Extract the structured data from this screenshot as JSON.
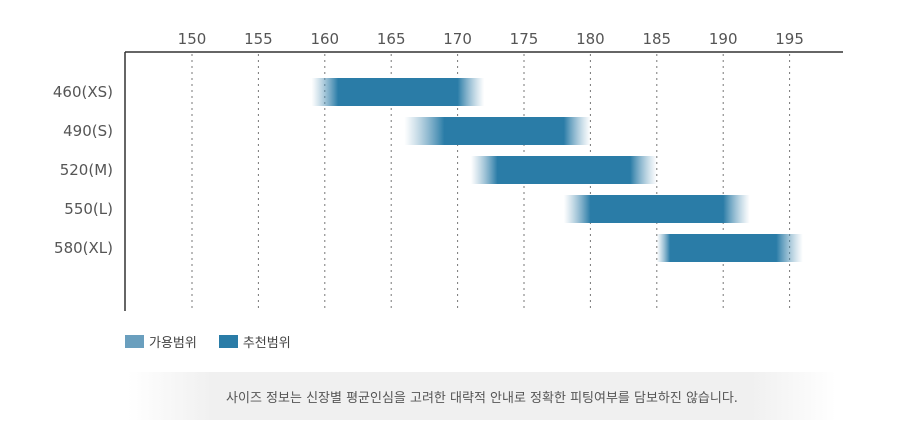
{
  "chart_data": {
    "type": "bar",
    "orientation": "horizontal-range",
    "x_ticks": [
      150,
      155,
      160,
      165,
      170,
      175,
      180,
      185,
      190,
      195
    ],
    "xlim": [
      145,
      199
    ],
    "grid": "vertical dotted",
    "categories": [
      "460(XS)",
      "490(S)",
      "520(M)",
      "550(L)",
      "580(XL)"
    ],
    "series": [
      {
        "name": "가용범위",
        "color": "#6a9fbe",
        "ranges": [
          [
            159,
            172
          ],
          [
            166,
            180
          ],
          [
            171,
            185
          ],
          [
            178,
            192
          ],
          [
            185,
            196
          ]
        ]
      },
      {
        "name": "추천범위",
        "color": "#2a7ca7",
        "ranges": [
          [
            161,
            170
          ],
          [
            169,
            178
          ],
          [
            173,
            183
          ],
          [
            180,
            190
          ],
          [
            186,
            194
          ]
        ]
      }
    ]
  },
  "legend": {
    "available_label": "가용범위",
    "recommended_label": "추천범위"
  },
  "note": "사이즈 정보는 신장별 평균인심을 고려한 대략적 안내로 정확한 피팅여부를 담보하진 않습니다."
}
